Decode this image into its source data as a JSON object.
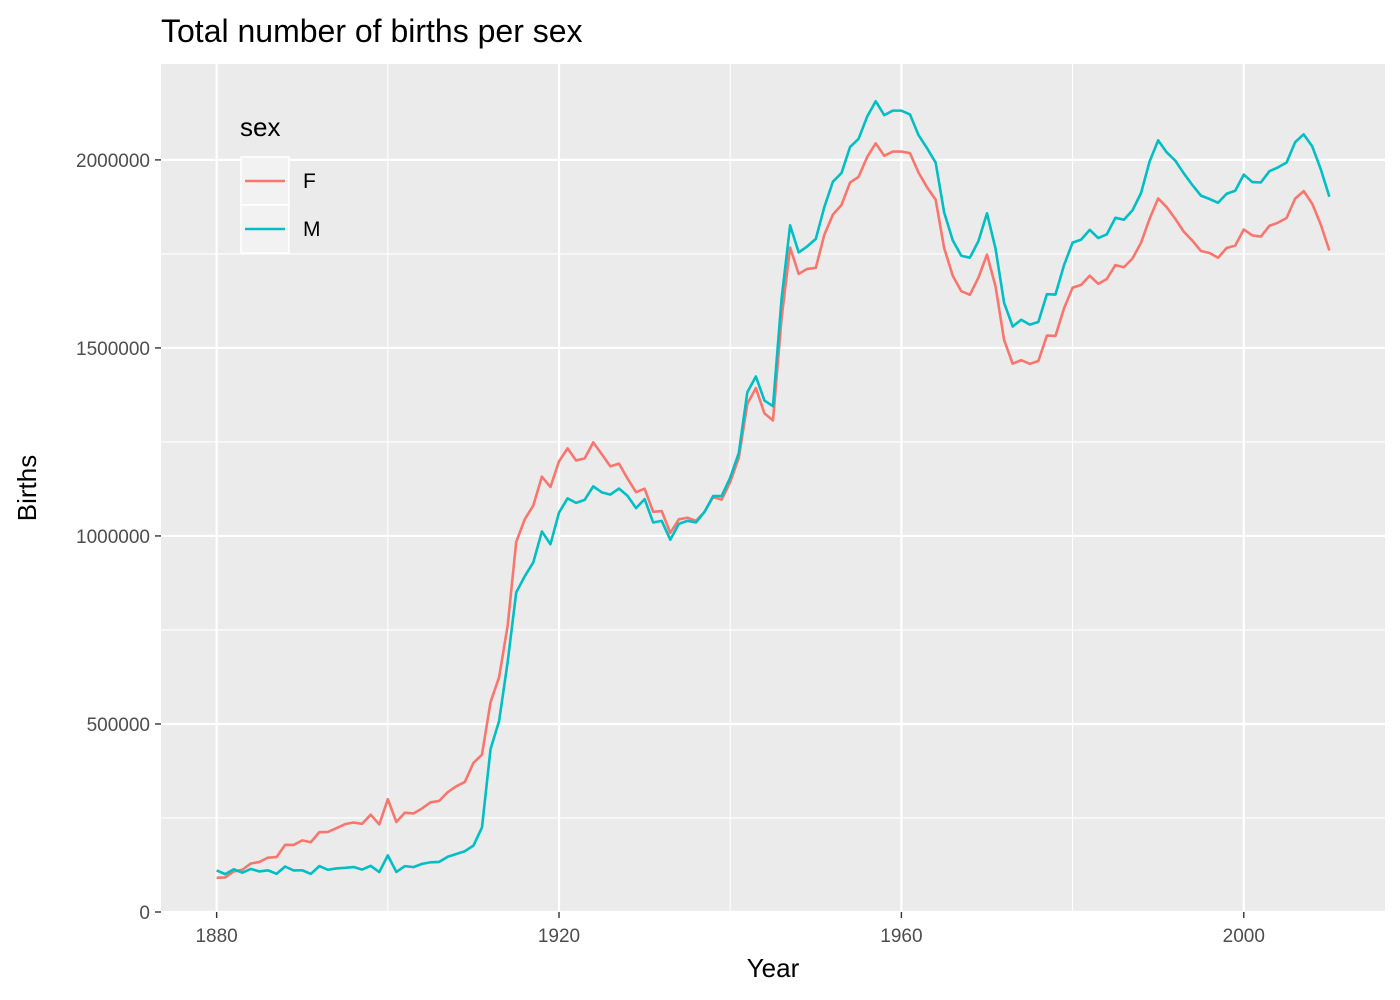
{
  "chart_data": {
    "type": "line",
    "title": "Total number of births per sex",
    "xlabel": "Year",
    "ylabel": "Births",
    "xlim": [
      1873.5,
      2016.5
    ],
    "ylim": [
      0,
      2255000
    ],
    "x_ticks": [
      1880,
      1920,
      1960,
      2000
    ],
    "x_tick_labels": [
      "1880",
      "1920",
      "1960",
      "2000"
    ],
    "x_minor_ticks": [
      1900,
      1940,
      1980
    ],
    "y_ticks": [
      0,
      500000,
      1000000,
      1500000,
      2000000
    ],
    "y_tick_labels": [
      "0",
      "500000",
      "1000000",
      "1500000",
      "2000000"
    ],
    "y_minor_ticks": [
      250000,
      750000,
      1250000,
      1750000
    ],
    "grid": true,
    "legend": {
      "title": "sex",
      "position": "top-left",
      "entries": [
        "F",
        "M"
      ]
    },
    "x_start": 1880,
    "x_end": 2010,
    "series": [
      {
        "name": "F",
        "color": "#F8766D",
        "values": [
          90992,
          91953,
          107847,
          112318,
          129020,
          133055,
          144534,
          145981,
          178624,
          178366,
          190376,
          185474,
          212340,
          212896,
          222922,
          233630,
          237920,
          234533,
          258771,
          233022,
          299810,
          239345,
          264201,
          261975,
          275375,
          291639,
          295301,
          318563,
          334279,
          345897,
          396505,
          418292,
          558041,
          624434,
          761643,
          983850,
          1044379,
          1081185,
          1157679,
          1130118,
          1198345,
          1232855,
          1200776,
          1206263,
          1248815,
          1217274,
          1185075,
          1192374,
          1152815,
          1116451,
          1125699,
          1064090,
          1066271,
          1007924,
          1044285,
          1048464,
          1040135,
          1063874,
          1103609,
          1096498,
          1143439,
          1207851,
          1351151,
          1393151,
          1325898,
          1307118,
          1578699,
          1766970,
          1696931,
          1710106,
          1712844,
          1801022,
          1854622,
          1879992,
          1939796,
          1954858,
          2007480,
          2044096,
          2010883,
          2022118,
          2022093,
          2017845,
          1966408,
          1927054,
          1894397,
          1765224,
          1691995,
          1650789,
          1641154,
          1686947,
          1748097,
          1663508,
          1521224,
          1458159,
          1467367,
          1457700,
          1465102,
          1532763,
          1531888,
          1605229,
          1660112,
          1667633,
          1692051,
          1670385,
          1683418,
          1720298,
          1714426,
          1737876,
          1779764,
          1843519,
          1897519,
          1874283,
          1843211,
          1808961,
          1785138,
          1757711,
          1752364,
          1739890,
          1765818,
          1772055,
          1814934,
          1799095,
          1796041,
          1824826,
          1833059,
          1845542,
          1897073,
          1916912,
          1883367,
          1827880,
          1759010
        ]
      },
      {
        "name": "M",
        "color": "#00BFC4",
        "values": [
          110491,
          100743,
          113686,
          104629,
          114445,
          107800,
          110785,
          101411,
          120851,
          110580,
          111025,
          101196,
          122035,
          112317,
          115772,
          117398,
          119570,
          112758,
          122693,
          106212,
          150499,
          106478,
          122029,
          119362,
          128035,
          132228,
          133161,
          146810,
          154298,
          161617,
          176442,
          224815,
          433023,
          508000,
          664750,
          850000,
          893000,
          930000,
          1012000,
          978000,
          1062000,
          1100000,
          1088000,
          1096000,
          1132000,
          1116000,
          1110000,
          1126000,
          1107000,
          1074000,
          1098000,
          1036000,
          1040000,
          990000,
          1032000,
          1040000,
          1036000,
          1064000,
          1106000,
          1106000,
          1155000,
          1220000,
          1382000,
          1424000,
          1360000,
          1345000,
          1630000,
          1826000,
          1754000,
          1770000,
          1790000,
          1875000,
          1942000,
          1965000,
          2034000,
          2056000,
          2115000,
          2156000,
          2119000,
          2131000,
          2131000,
          2121000,
          2066000,
          2031000,
          1993000,
          1860000,
          1786000,
          1745000,
          1740000,
          1784000,
          1858000,
          1764000,
          1620000,
          1557000,
          1575000,
          1562000,
          1569000,
          1643000,
          1642000,
          1720000,
          1780000,
          1788000,
          1814000,
          1792000,
          1802000,
          1846000,
          1841000,
          1866000,
          1912000,
          1996000,
          2052000,
          2020000,
          1998000,
          1964000,
          1933000,
          1905000,
          1896000,
          1886000,
          1910000,
          1918000,
          1961000,
          1941000,
          1940000,
          1970000,
          1980000,
          1993000,
          2047000,
          2068000,
          2036000,
          1975000,
          1902000
        ]
      }
    ]
  }
}
